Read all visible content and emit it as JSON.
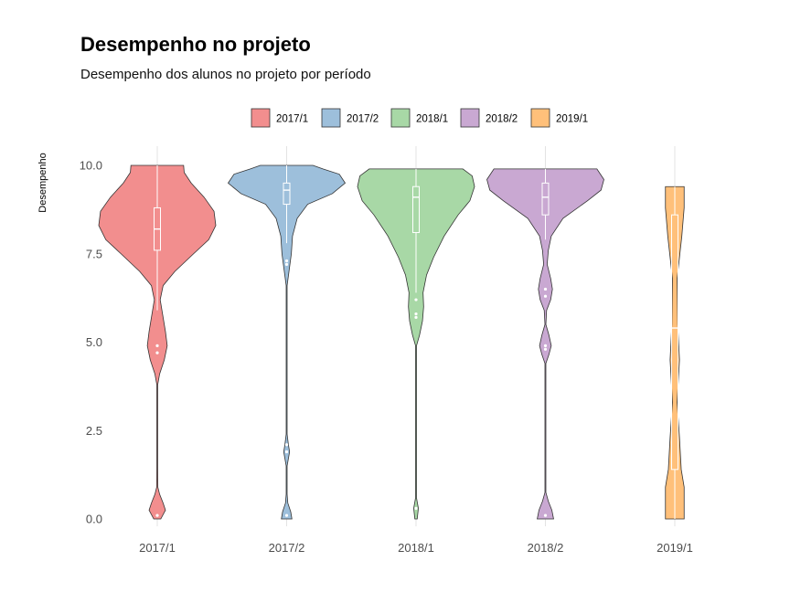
{
  "chart_data": {
    "type": "violin",
    "title": "Desempenho no projeto",
    "subtitle": "Desempenho dos alunos no projeto por período",
    "xlabel": "",
    "ylabel": "Desempenho",
    "ylim": [
      0,
      10
    ],
    "yticks": [
      "0.0",
      "2.5",
      "5.0",
      "7.5",
      "10.0"
    ],
    "grid": "vertical-major-only",
    "legend_position": "top",
    "categories": [
      "2017/1",
      "2017/2",
      "2018/1",
      "2018/2",
      "2019/1"
    ],
    "series": [
      {
        "name": "2017/1",
        "color": "#F28E8E",
        "min": 0.0,
        "q1": 7.6,
        "median": 8.2,
        "q3": 8.8,
        "max": 10.0,
        "whisker_low": 5.9,
        "whisker_high": 10.0,
        "outliers": [
          4.9,
          4.7,
          0.1
        ],
        "density": [
          [
            0.0,
            0.06
          ],
          [
            0.25,
            0.14
          ],
          [
            0.45,
            0.1
          ],
          [
            0.7,
            0.04
          ],
          [
            0.9,
            0.01
          ],
          [
            1.5,
            0.004
          ],
          [
            3.8,
            0.004
          ],
          [
            4.1,
            0.04
          ],
          [
            4.5,
            0.12
          ],
          [
            4.9,
            0.17
          ],
          [
            5.3,
            0.14
          ],
          [
            5.8,
            0.09
          ],
          [
            6.2,
            0.05
          ],
          [
            6.6,
            0.1
          ],
          [
            7.0,
            0.3
          ],
          [
            7.5,
            0.62
          ],
          [
            7.9,
            0.88
          ],
          [
            8.3,
            1.0
          ],
          [
            8.7,
            0.97
          ],
          [
            9.1,
            0.8
          ],
          [
            9.5,
            0.58
          ],
          [
            9.8,
            0.46
          ],
          [
            10.0,
            0.45
          ]
        ]
      },
      {
        "name": "2017/2",
        "color": "#9DBFDB",
        "min": 0.0,
        "q1": 8.9,
        "median": 9.3,
        "q3": 9.5,
        "max": 10.0,
        "whisker_low": 7.8,
        "whisker_high": 10.0,
        "outliers": [
          7.3,
          7.2,
          2.1,
          1.9,
          0.1
        ],
        "density": [
          [
            0.0,
            0.09
          ],
          [
            0.2,
            0.07
          ],
          [
            0.45,
            0.02
          ],
          [
            0.7,
            0.004
          ],
          [
            1.5,
            0.004
          ],
          [
            1.9,
            0.05
          ],
          [
            2.1,
            0.03
          ],
          [
            2.4,
            0.004
          ],
          [
            6.6,
            0.004
          ],
          [
            7.0,
            0.04
          ],
          [
            7.5,
            0.08
          ],
          [
            8.0,
            0.1
          ],
          [
            8.5,
            0.18
          ],
          [
            8.9,
            0.36
          ],
          [
            9.2,
            0.78
          ],
          [
            9.5,
            1.0
          ],
          [
            9.75,
            0.9
          ],
          [
            9.9,
            0.62
          ],
          [
            10.0,
            0.45
          ]
        ]
      },
      {
        "name": "2018/1",
        "color": "#A8D8A6",
        "min": 0.0,
        "q1": 8.1,
        "median": 9.1,
        "q3": 9.4,
        "max": 9.9,
        "whisker_low": 6.4,
        "whisker_high": 9.9,
        "outliers": [
          6.2,
          5.8,
          5.7,
          0.3
        ],
        "density": [
          [
            0.0,
            0.02
          ],
          [
            0.3,
            0.04
          ],
          [
            0.6,
            0.004
          ],
          [
            4.9,
            0.004
          ],
          [
            5.2,
            0.06
          ],
          [
            5.6,
            0.11
          ],
          [
            6.0,
            0.13
          ],
          [
            6.4,
            0.12
          ],
          [
            6.9,
            0.18
          ],
          [
            7.4,
            0.3
          ],
          [
            8.0,
            0.48
          ],
          [
            8.6,
            0.72
          ],
          [
            9.0,
            0.92
          ],
          [
            9.4,
            1.0
          ],
          [
            9.7,
            0.96
          ],
          [
            9.9,
            0.8
          ]
        ]
      },
      {
        "name": "2018/2",
        "color": "#C9A8D2",
        "min": 0.0,
        "q1": 8.6,
        "median": 9.1,
        "q3": 9.5,
        "max": 9.9,
        "whisker_low": 7.9,
        "whisker_high": 9.9,
        "outliers": [
          6.5,
          6.3,
          4.9,
          4.8,
          0.1
        ],
        "density": [
          [
            0.0,
            0.14
          ],
          [
            0.25,
            0.11
          ],
          [
            0.5,
            0.05
          ],
          [
            0.75,
            0.004
          ],
          [
            4.4,
            0.004
          ],
          [
            4.65,
            0.06
          ],
          [
            4.9,
            0.1
          ],
          [
            5.2,
            0.06
          ],
          [
            5.5,
            0.004
          ],
          [
            5.9,
            0.02
          ],
          [
            6.2,
            0.09
          ],
          [
            6.5,
            0.12
          ],
          [
            6.8,
            0.09
          ],
          [
            7.2,
            0.03
          ],
          [
            7.6,
            0.05
          ],
          [
            8.0,
            0.1
          ],
          [
            8.5,
            0.3
          ],
          [
            9.0,
            0.72
          ],
          [
            9.3,
            0.95
          ],
          [
            9.6,
            1.0
          ],
          [
            9.9,
            0.88
          ]
        ]
      },
      {
        "name": "2019/1",
        "color": "#FFC07A",
        "min": 0.0,
        "q1": 1.4,
        "median": 5.4,
        "q3": 8.6,
        "max": 9.4,
        "whisker_low": 0.0,
        "whisker_high": 9.4,
        "outliers": [],
        "density": [
          [
            0.0,
            0.16
          ],
          [
            0.9,
            0.16
          ],
          [
            1.4,
            0.11
          ],
          [
            2.3,
            0.08
          ],
          [
            3.3,
            0.04
          ],
          [
            4.5,
            0.08
          ],
          [
            5.5,
            0.05
          ],
          [
            6.8,
            0.04
          ],
          [
            8.0,
            0.12
          ],
          [
            8.8,
            0.16
          ],
          [
            9.4,
            0.16
          ]
        ]
      }
    ]
  }
}
